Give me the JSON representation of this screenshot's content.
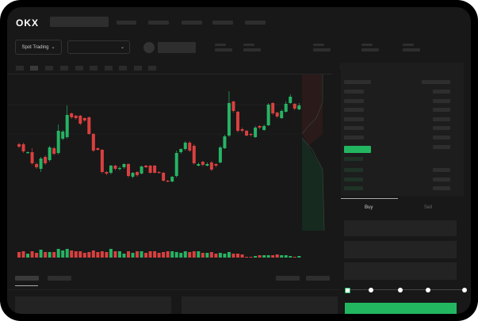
{
  "header": {
    "logo": "OKX"
  },
  "market": {
    "selector_label": "Spot Trading",
    "chevron": "chevron-down-icon"
  },
  "trade": {
    "buy_tab": "Buy",
    "sell_tab": "Sell",
    "slider_fraction": 0
  },
  "colors": {
    "up": "#26b364",
    "down": "#d9403f",
    "background": "#181818"
  },
  "chart_data": {
    "type": "candlestick",
    "candles": [
      [
        68,
        65,
        70,
        63
      ],
      [
        68,
        59,
        70,
        57
      ],
      [
        57,
        58,
        59,
        56
      ],
      [
        58,
        44,
        63,
        42
      ],
      [
        43,
        39,
        45,
        37
      ],
      [
        37,
        50,
        33,
        52
      ],
      [
        52,
        44,
        54,
        42
      ],
      [
        48,
        64,
        46,
        66
      ],
      [
        63,
        56,
        65,
        54
      ],
      [
        57,
        85,
        55,
        93
      ],
      [
        75,
        84,
        73,
        86
      ],
      [
        77,
        105,
        75,
        117
      ],
      [
        107,
        102,
        108,
        100
      ],
      [
        104,
        101,
        105,
        99
      ],
      [
        104,
        94,
        105,
        92
      ],
      [
        101,
        98,
        102,
        96
      ],
      [
        102,
        81,
        103,
        80
      ],
      [
        81,
        60,
        82,
        58
      ],
      [
        63,
        61,
        64,
        60
      ],
      [
        61,
        33,
        62,
        31
      ],
      [
        33,
        31,
        34,
        29
      ],
      [
        32,
        41,
        30,
        42
      ],
      [
        41,
        37,
        42,
        35
      ],
      [
        37,
        38,
        35,
        40
      ],
      [
        39,
        43,
        37,
        44
      ],
      [
        43,
        28,
        44,
        26
      ],
      [
        27,
        32,
        25,
        33
      ],
      [
        33,
        29,
        34,
        27
      ],
      [
        31,
        40,
        30,
        41
      ],
      [
        41,
        39,
        42,
        38
      ],
      [
        41,
        32,
        42,
        31
      ],
      [
        41,
        32,
        42,
        31
      ],
      [
        33,
        32,
        34,
        31
      ],
      [
        32,
        22,
        33,
        21
      ],
      [
        22,
        21,
        23,
        20
      ],
      [
        21,
        27,
        20,
        28
      ],
      [
        28,
        57,
        26,
        60
      ],
      [
        58,
        62,
        56,
        63
      ],
      [
        62,
        70,
        60,
        72
      ],
      [
        70,
        60,
        72,
        58
      ],
      [
        66,
        44,
        68,
        42
      ],
      [
        41,
        43,
        40,
        45
      ],
      [
        46,
        42,
        47,
        40
      ],
      [
        41,
        43,
        40,
        45
      ],
      [
        45,
        36,
        47,
        34
      ],
      [
        43,
        41,
        44,
        39
      ],
      [
        45,
        64,
        44,
        66
      ],
      [
        63,
        78,
        62,
        80
      ],
      [
        79,
        120,
        77,
        135
      ],
      [
        122,
        110,
        123,
        108
      ],
      [
        109,
        85,
        110,
        83
      ],
      [
        87,
        85,
        89,
        83
      ],
      [
        85,
        79,
        86,
        78
      ],
      [
        81,
        80,
        82,
        78
      ],
      [
        77,
        89,
        76,
        91
      ],
      [
        91,
        89,
        92,
        87
      ],
      [
        86,
        91,
        85,
        93
      ],
      [
        92,
        118,
        91,
        120
      ],
      [
        120,
        107,
        121,
        105
      ],
      [
        108,
        103,
        109,
        101
      ],
      [
        101,
        110,
        100,
        112
      ],
      [
        109,
        119,
        108,
        122
      ],
      [
        120,
        128,
        119,
        131
      ],
      [
        119,
        113,
        120,
        111
      ],
      [
        112,
        117,
        111,
        120
      ]
    ],
    "volume": [
      7,
      8,
      5,
      8,
      6,
      10,
      7,
      7,
      7,
      11,
      9,
      11,
      9,
      8,
      8,
      6,
      7,
      9,
      7,
      8,
      7,
      11,
      8,
      8,
      5,
      8,
      6,
      8,
      8,
      6,
      8,
      8,
      6,
      7,
      8,
      8,
      7,
      6,
      8,
      7,
      8,
      8,
      6,
      6,
      7,
      5,
      6,
      5,
      7,
      5,
      5,
      4,
      1,
      1,
      2,
      3,
      3,
      3,
      3,
      4,
      3,
      3,
      2,
      1,
      2
    ]
  }
}
